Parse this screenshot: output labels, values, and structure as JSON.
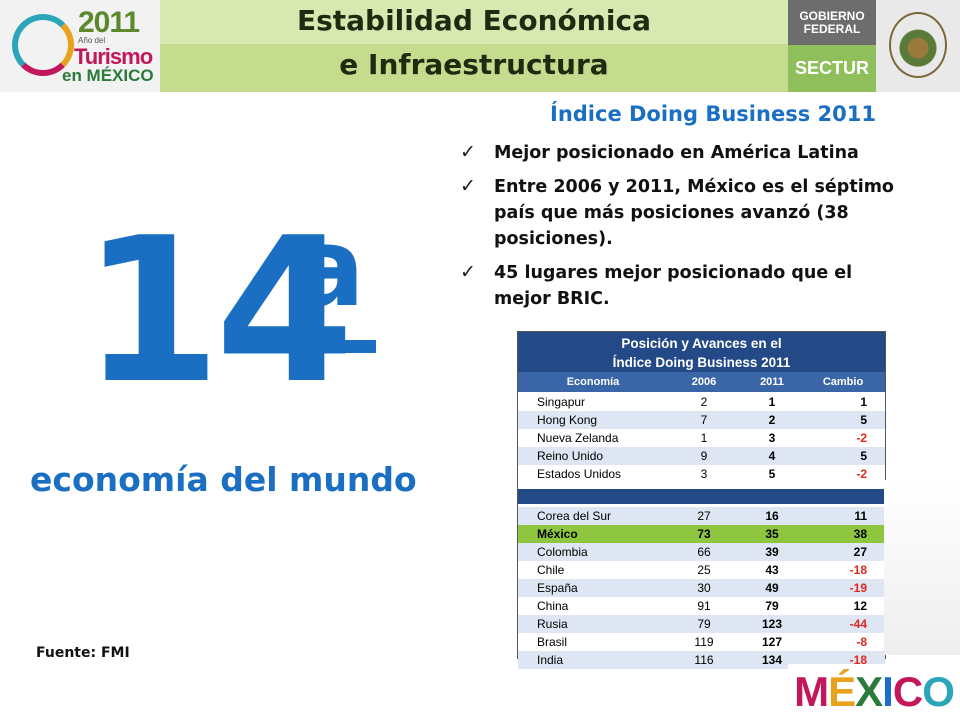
{
  "header": {
    "title_line1": "Estabilidad Económica",
    "title_line2": "e Infraestructura",
    "logo_year": "2011",
    "logo_ano": "Año del",
    "logo_turismo": "Turismo",
    "logo_en_mexico": "en MÉXICO",
    "gobierno_line1": "Gobierno",
    "gobierno_line2": "Federal",
    "sectur": "SECTUR"
  },
  "hero": {
    "rank_number": "14",
    "rank_suffix": "a",
    "subtitle": "economía del mundo"
  },
  "source": "Fuente: FMI",
  "index": {
    "title": "Índice Doing Business 2011",
    "bullets": [
      "Mejor posicionado en América Latina",
      "Entre 2006 y 2011, México es el séptimo país que más posiciones avanzó (38 posiciones).",
      "45  lugares mejor posicionado que el mejor BRIC."
    ]
  },
  "table": {
    "title_line1": "Posición y Avances en el",
    "title_line2": "Índice Doing Business 2011",
    "columns": [
      "Economía",
      "2006",
      "2011",
      "Cambio"
    ],
    "group1": [
      {
        "economia": "Singapur",
        "y2006": "2",
        "y2011": "1",
        "cambio": "1"
      },
      {
        "economia": "Hong Kong",
        "y2006": "7",
        "y2011": "2",
        "cambio": "5"
      },
      {
        "economia": "Nueva Zelanda",
        "y2006": "1",
        "y2011": "3",
        "cambio": "-2"
      },
      {
        "economia": "Reino Unido",
        "y2006": "9",
        "y2011": "4",
        "cambio": "5"
      },
      {
        "economia": "Estados Unidos",
        "y2006": "3",
        "y2011": "5",
        "cambio": "-2"
      }
    ],
    "group2": [
      {
        "economia": "Corea del Sur",
        "y2006": "27",
        "y2011": "16",
        "cambio": "11"
      },
      {
        "economia": "México",
        "y2006": "73",
        "y2011": "35",
        "cambio": "38"
      },
      {
        "economia": "Colombia",
        "y2006": "66",
        "y2011": "39",
        "cambio": "27"
      },
      {
        "economia": "Chile",
        "y2006": "25",
        "y2011": "43",
        "cambio": "-18"
      },
      {
        "economia": "España",
        "y2006": "30",
        "y2011": "49",
        "cambio": "-19"
      },
      {
        "economia": "China",
        "y2006": "91",
        "y2011": "79",
        "cambio": "12"
      },
      {
        "economia": "Rusia",
        "y2006": "79",
        "y2011": "123",
        "cambio": "-44"
      },
      {
        "economia": "Brasil",
        "y2006": "119",
        "y2011": "127",
        "cambio": "-8"
      },
      {
        "economia": "India",
        "y2006": "116",
        "y2011": "134",
        "cambio": "-18"
      }
    ],
    "highlight_color": "#8ec63f",
    "negative_color": "#e0281c"
  },
  "footer_logo": [
    "M",
    "É",
    "X",
    "I",
    "C",
    "O"
  ]
}
